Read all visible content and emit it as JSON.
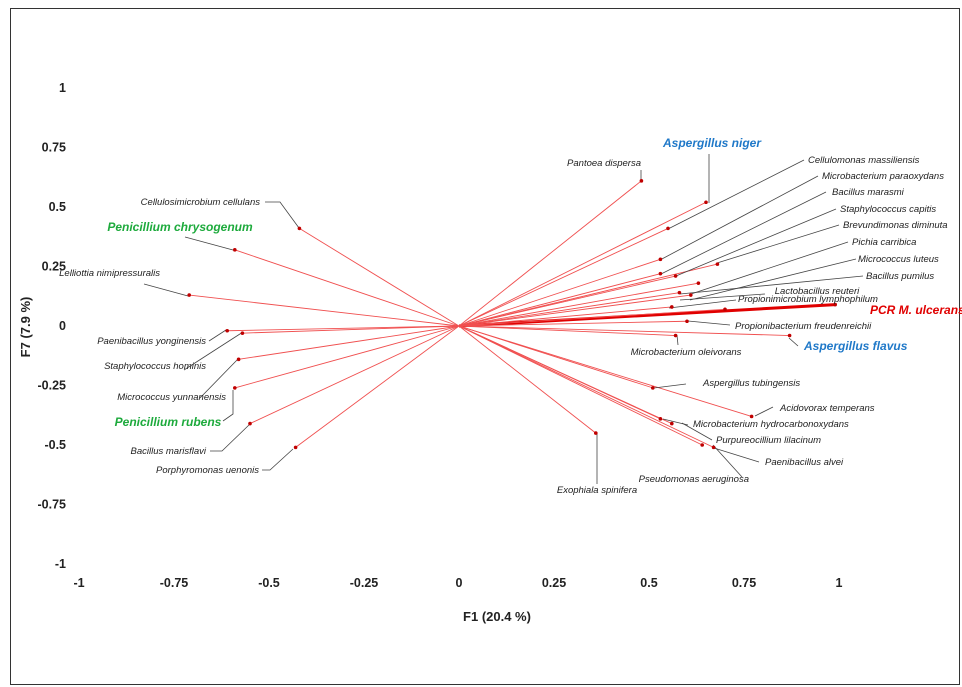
{
  "chart_data": {
    "type": "biplot",
    "xlabel": "F1 (20.4 %)",
    "ylabel": "F7 (7.9 %)",
    "xlim": [
      -1,
      1
    ],
    "ylim": [
      -1,
      1
    ],
    "x_ticks": [
      "-1",
      "-0.75",
      "-0.5",
      "-0.25",
      "0",
      "0.25",
      "0.5",
      "0.75",
      "1"
    ],
    "y_ticks": [
      "1",
      "0.75",
      "0.5",
      "0.25",
      "0",
      "-0.25",
      "-0.5",
      "-0.75",
      "-1"
    ],
    "line_color": "#f05050",
    "highlight_color": "#e00000",
    "point_color": "#c00000",
    "vectors": [
      {
        "name": "PCR M. ulcerans",
        "x": 0.99,
        "y": 0.09,
        "color": "#e00000",
        "emph": "primary"
      },
      {
        "name": "Aspergillus niger",
        "x": 0.65,
        "y": 0.52,
        "color": "#1f78c8",
        "emph": "big"
      },
      {
        "name": "Aspergillus flavus",
        "x": 0.87,
        "y": -0.04,
        "color": "#1f78c8",
        "emph": "big"
      },
      {
        "name": "Penicillium chrysogenum",
        "x": -0.59,
        "y": 0.32,
        "color": "#1daa3c",
        "emph": "big"
      },
      {
        "name": "Penicillium  rubens",
        "x": -0.59,
        "y": -0.26,
        "color": "#1daa3c",
        "emph": "big"
      },
      {
        "name": "Pantoea dispersa",
        "x": 0.48,
        "y": 0.61
      },
      {
        "name": "Cellulomonas massiliensis",
        "x": 0.55,
        "y": 0.41
      },
      {
        "name": "Microbacterium paraoxydans",
        "x": 0.53,
        "y": 0.28
      },
      {
        "name": "Bacillus marasmi",
        "x": 0.53,
        "y": 0.22
      },
      {
        "name": "Staphylococcus capitis",
        "x": 0.57,
        "y": 0.21
      },
      {
        "name": "Brevundimonas diminuta",
        "x": 0.68,
        "y": 0.26
      },
      {
        "name": "Pichia carribica",
        "x": 0.63,
        "y": 0.18
      },
      {
        "name": "Micrococcus luteus",
        "x": 0.61,
        "y": 0.13
      },
      {
        "name": "Bacillus pumilus",
        "x": 0.58,
        "y": 0.14
      },
      {
        "name": "Lactobacillus reuteri",
        "x": 0.56,
        "y": 0.08
      },
      {
        "name": "Propionimicrobium lymphophilum",
        "x": 0.7,
        "y": 0.07
      },
      {
        "name": "Propionibacterium freudenreichii",
        "x": 0.6,
        "y": 0.02
      },
      {
        "name": "Microbacterium oleivorans",
        "x": 0.57,
        "y": -0.04
      },
      {
        "name": "Aspergillus tubingensis",
        "x": 0.51,
        "y": -0.26
      },
      {
        "name": "Acidovorax temperans",
        "x": 0.77,
        "y": -0.38
      },
      {
        "name": "Microbacterium hydrocarbonoxydans",
        "x": 0.53,
        "y": -0.39
      },
      {
        "name": "Purpureocillium lilacinum",
        "x": 0.56,
        "y": -0.41
      },
      {
        "name": "Paenibacillus alvei",
        "x": 0.67,
        "y": -0.51
      },
      {
        "name": "Pseudomonas aeruginosa",
        "x": 0.64,
        "y": -0.5
      },
      {
        "name": "Exophiala spinifera",
        "x": 0.36,
        "y": -0.45
      },
      {
        "name": "Cellulosimicrobium cellulans",
        "x": -0.42,
        "y": 0.41
      },
      {
        "name": "Lelliottia nimipressuralis",
        "x": -0.71,
        "y": 0.13
      },
      {
        "name": "Paenibacillus yonginensis",
        "x": -0.61,
        "y": -0.02
      },
      {
        "name": "Staphylococcus hominis",
        "x": -0.57,
        "y": -0.03
      },
      {
        "name": "Micrococcus yunnanensis",
        "x": -0.58,
        "y": -0.14
      },
      {
        "name": "Bacillus marisflavi",
        "x": -0.55,
        "y": -0.41
      },
      {
        "name": "Porphyromonas uenonis",
        "x": -0.43,
        "y": -0.51
      }
    ]
  }
}
